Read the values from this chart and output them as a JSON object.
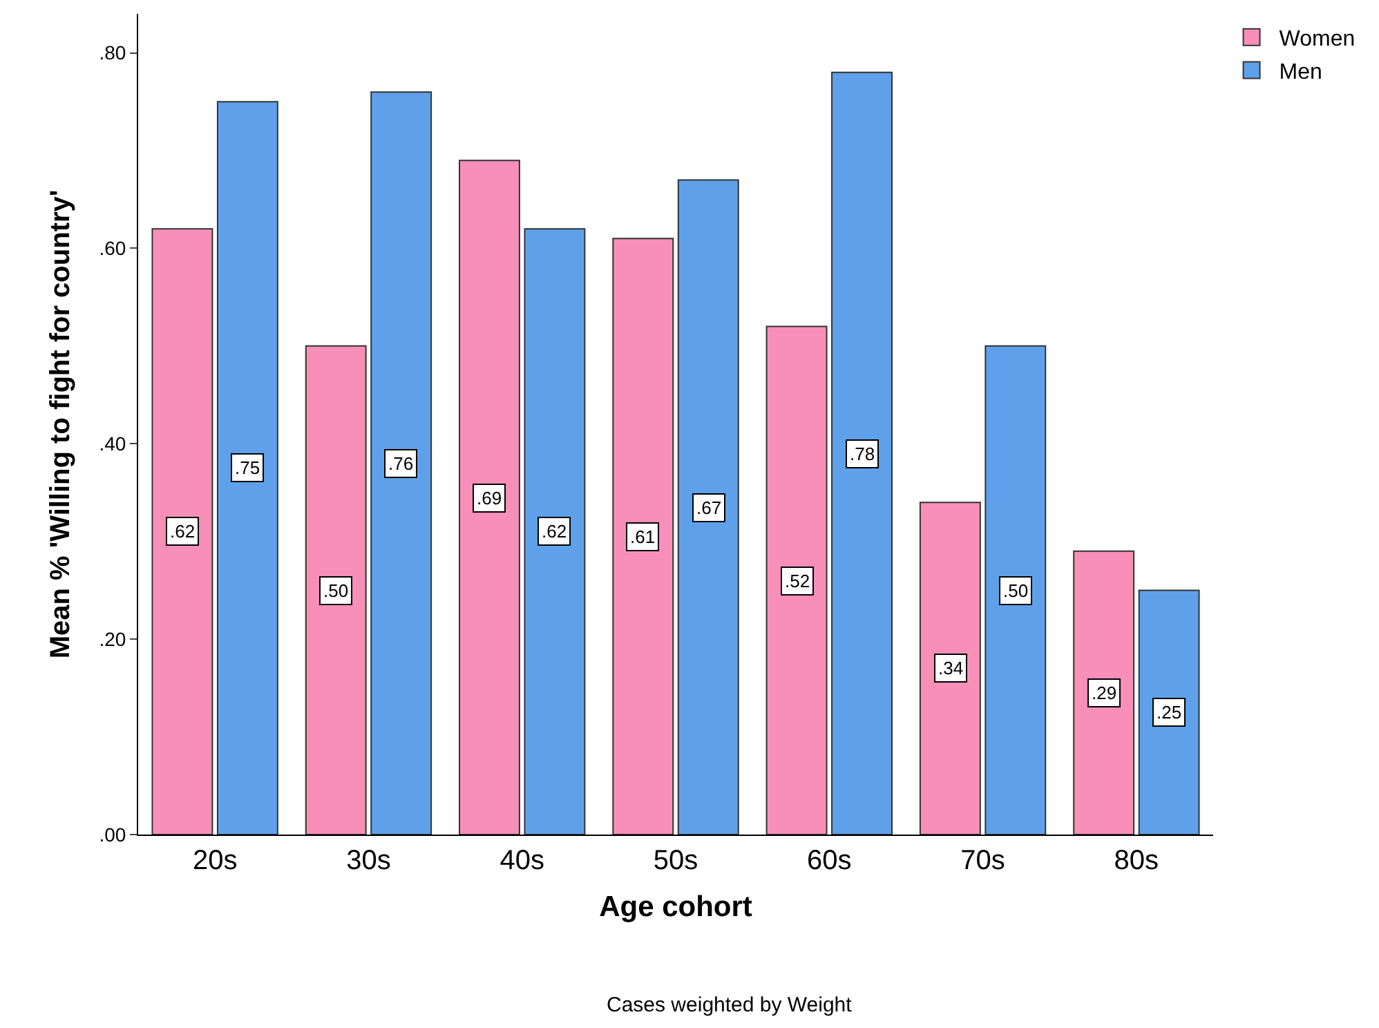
{
  "chart_data": {
    "type": "bar",
    "xlabel": "Age cohort",
    "ylabel": "Mean % 'Willing to fight for country'",
    "categories": [
      "20s",
      "30s",
      "40s",
      "50s",
      "60s",
      "70s",
      "80s"
    ],
    "series": [
      {
        "name": "Women",
        "color": "#f78fb9",
        "values": [
          0.62,
          0.5,
          0.69,
          0.61,
          0.52,
          0.34,
          0.29
        ],
        "value_labels": [
          ".62",
          ".50",
          ".69",
          ".61",
          ".52",
          ".34",
          ".29"
        ]
      },
      {
        "name": "Men",
        "color": "#5ea1ea",
        "values": [
          0.75,
          0.76,
          0.62,
          0.67,
          0.78,
          0.5,
          0.25
        ],
        "value_labels": [
          ".75",
          ".76",
          ".62",
          ".67",
          ".78",
          ".50",
          ".25"
        ]
      }
    ],
    "ylim": [
      0,
      0.84
    ],
    "yticks": [
      {
        "value": 0,
        "label": ".00"
      },
      {
        "value": 0.2,
        "label": ".20"
      },
      {
        "value": 0.4,
        "label": ".40"
      },
      {
        "value": 0.6,
        "label": ".60"
      },
      {
        "value": 0.8,
        "label": ".80"
      }
    ],
    "legend": "top right",
    "annotations": [
      "Cases weighted by Weight"
    ]
  }
}
